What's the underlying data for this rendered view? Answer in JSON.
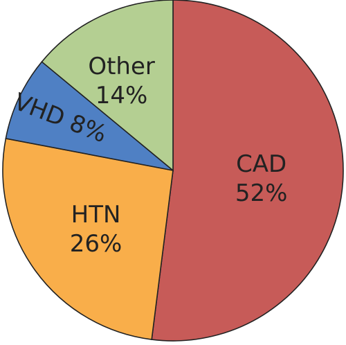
{
  "chart_data": {
    "type": "pie",
    "slices": [
      {
        "label": "CAD",
        "value": 52,
        "display": "52%",
        "color": "#c75b58"
      },
      {
        "label": "HTN",
        "value": 26,
        "display": "26%",
        "color": "#f9ae4a"
      },
      {
        "label": "VHD",
        "value": 8,
        "display": "8%",
        "color": "#4f80c4"
      },
      {
        "label": "Other",
        "value": 14,
        "display": "14%",
        "color": "#b4cf92"
      }
    ]
  }
}
